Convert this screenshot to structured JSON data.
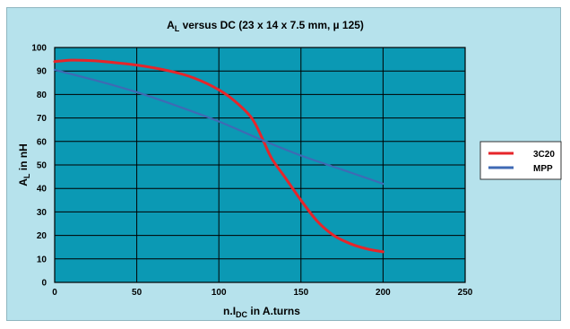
{
  "chart_data": {
    "type": "line",
    "title_main": "A",
    "title_sub": "L",
    "title_rest": " versus DC (23 x 14 x 7.5 mm, µ 125)",
    "xlabel_main": "n.I",
    "xlabel_sub": "DC",
    "xlabel_rest": " in A.turns",
    "ylabel_main": "A",
    "ylabel_sub": "L",
    "ylabel_rest": " in nH",
    "xlim": [
      0,
      250
    ],
    "ylim": [
      0,
      100
    ],
    "xticks": [
      0,
      50,
      100,
      150,
      200,
      250
    ],
    "yticks": [
      0,
      10,
      20,
      30,
      40,
      50,
      60,
      70,
      80,
      90,
      100
    ],
    "grid": true,
    "legend_position": "right",
    "plot_background": "#0b99b4",
    "series": [
      {
        "name": "3C20",
        "color": "#e6252a",
        "x": [
          0,
          10,
          25,
          50,
          70,
          85,
          100,
          110,
          120,
          126,
          132,
          140,
          150,
          160,
          170,
          180,
          190,
          200
        ],
        "y": [
          94,
          94.6,
          94.3,
          92.5,
          90,
          87,
          82,
          77,
          70,
          62,
          53,
          45,
          35,
          26,
          20,
          16.5,
          14.3,
          13
        ]
      },
      {
        "name": "MPP",
        "color": "#3f6ab4",
        "x": [
          0,
          25,
          50,
          75,
          100,
          125,
          150,
          175,
          200
        ],
        "y": [
          90.5,
          86,
          81,
          75,
          68.5,
          61,
          54,
          48,
          42
        ]
      }
    ]
  }
}
